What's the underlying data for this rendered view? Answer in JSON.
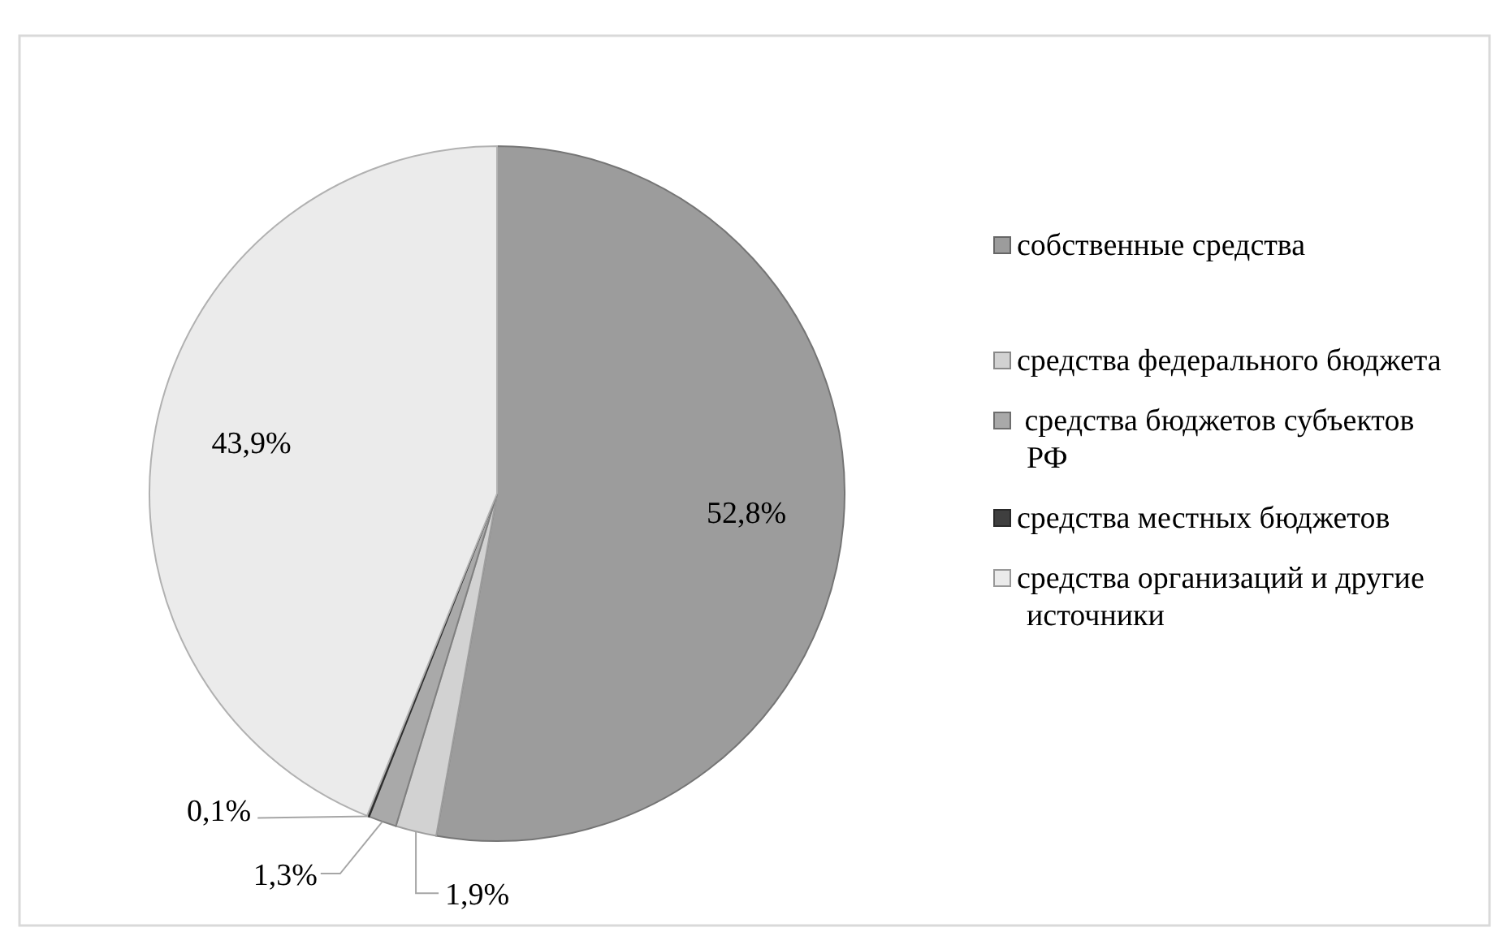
{
  "chart_data": {
    "type": "pie",
    "categories": [
      "собственные средства",
      "средства федерального бюджета",
      " средства бюджетов субъектов РФ",
      "средства местных бюджетов",
      "средства организаций и другие источники"
    ],
    "values": [
      52.8,
      1.9,
      1.3,
      0.1,
      43.9
    ],
    "value_labels": [
      "52,8%",
      "1,9%",
      "1,3%",
      "0,1%",
      "43,9%"
    ],
    "colors": [
      "#9c9c9c",
      "#d2d2d2",
      "#a9a9a9",
      "#3f3f3f",
      "#ebebeb"
    ],
    "legend": "right"
  }
}
